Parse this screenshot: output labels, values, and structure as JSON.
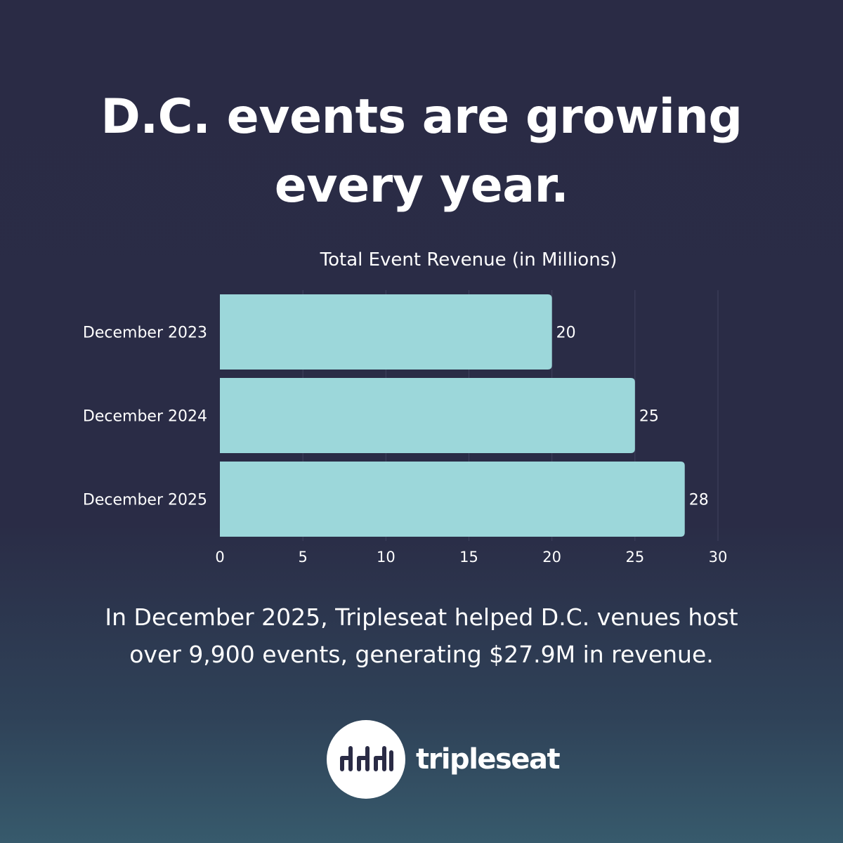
{
  "headline": {
    "line1": "D.C. events are growing",
    "line2": "every year."
  },
  "caption": {
    "line1": "In December 2025, Tripleseat helped D.C. venues host",
    "line2": "over 9,900 events, generating $27.9M in revenue."
  },
  "brand": {
    "name": "tripleseat",
    "icon": "tripleseat-chairs-logo-icon"
  },
  "colors": {
    "background": "#2a2b45",
    "bar": "#9cd7da",
    "text": "#ffffff",
    "gridline": "#40425e"
  },
  "chart_data": {
    "type": "bar",
    "orientation": "horizontal",
    "title": "Total Event Revenue (in Millions)",
    "categories": [
      "December 2023",
      "December 2024",
      "December 2025"
    ],
    "values": [
      20,
      25,
      28
    ],
    "data_labels": [
      "20",
      "25",
      "28"
    ],
    "xlim": [
      0,
      30
    ],
    "xticks": [
      "0",
      "5",
      "10",
      "15",
      "20",
      "25",
      "30"
    ],
    "grid": "vertical",
    "legend": "none"
  }
}
